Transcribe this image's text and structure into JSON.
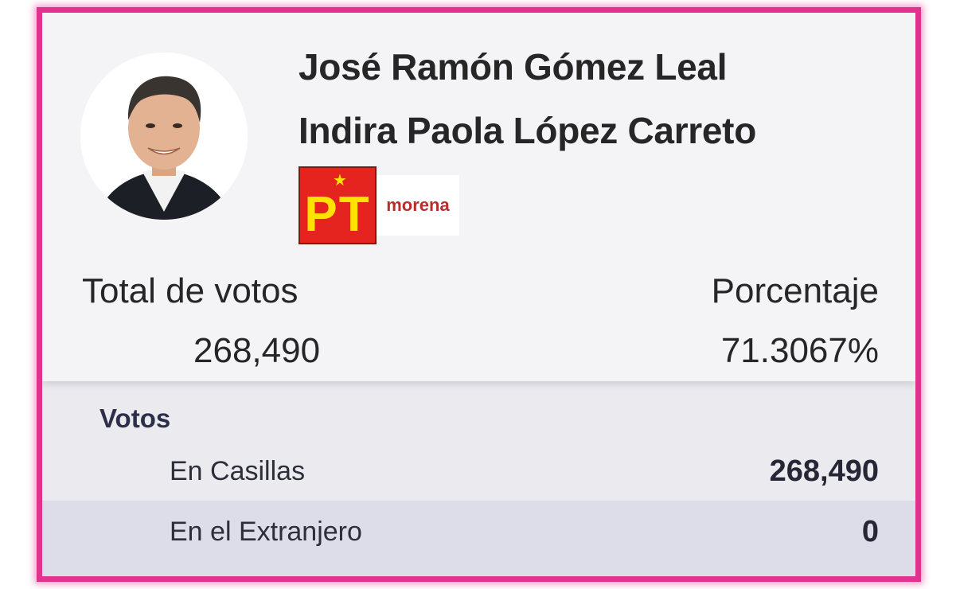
{
  "candidate": {
    "name_primary": "José Ramón Gómez Leal",
    "name_secondary": "Indira Paola López Carreto",
    "parties": {
      "pt_logo_text": "PT",
      "morena_logo_text": "morena"
    }
  },
  "stats": {
    "total_label": "Total de votos",
    "total_value": "268,490",
    "percent_label": "Porcentaje",
    "percent_value": "71.3067%"
  },
  "votes": {
    "title": "Votos",
    "rows": [
      {
        "label": "En Casillas",
        "value": "268,490"
      },
      {
        "label": "En el Extranjero",
        "value": "0"
      }
    ]
  },
  "colors": {
    "frame_accent": "#e0338f",
    "pt_red": "#e52420",
    "pt_yellow": "#ffe200",
    "morena_red": "#b5302d"
  }
}
